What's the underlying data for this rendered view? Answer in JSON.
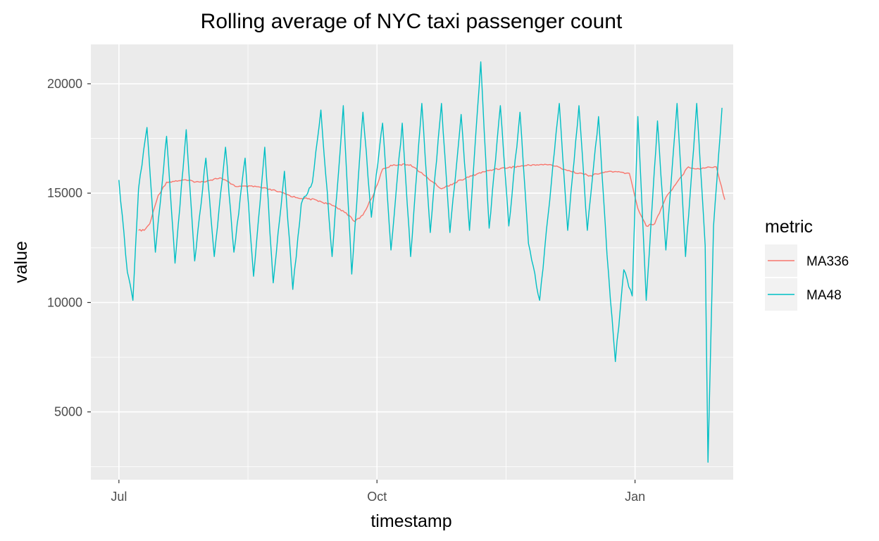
{
  "chart_data": {
    "type": "line",
    "title": "Rolling average of NYC taxi passenger count",
    "xlabel": "timestamp",
    "ylabel": "value",
    "x_ticks": [
      {
        "label": "Jul",
        "value": "2014-07-01"
      },
      {
        "label": "Oct",
        "value": "2014-10-01"
      },
      {
        "label": "Jan",
        "value": "2015-01-01"
      }
    ],
    "y_ticks": [
      5000,
      10000,
      15000,
      20000
    ],
    "xlim": [
      "2014-06-21",
      "2015-02-05"
    ],
    "ylim": [
      1900,
      21800
    ],
    "grid": true,
    "legend": {
      "title": "metric",
      "position": "right",
      "entries": [
        {
          "name": "MA336",
          "color": "#F8766D"
        },
        {
          "name": "MA48",
          "color": "#00BFC4"
        }
      ]
    },
    "series": [
      {
        "name": "MA336",
        "color": "#F8766D",
        "points": [
          [
            "2014-07-08",
            13300
          ],
          [
            "2014-07-10",
            13300
          ],
          [
            "2014-07-12",
            13600
          ],
          [
            "2014-07-15",
            14900
          ],
          [
            "2014-07-18",
            15500
          ],
          [
            "2014-07-24",
            15600
          ],
          [
            "2014-07-30",
            15500
          ],
          [
            "2014-08-06",
            15700
          ],
          [
            "2014-08-12",
            15300
          ],
          [
            "2014-08-19",
            15300
          ],
          [
            "2014-08-26",
            15100
          ],
          [
            "2014-09-02",
            14800
          ],
          [
            "2014-09-09",
            14700
          ],
          [
            "2014-09-16",
            14400
          ],
          [
            "2014-09-20",
            14100
          ],
          [
            "2014-09-23",
            13700
          ],
          [
            "2014-09-26",
            14000
          ],
          [
            "2014-09-30",
            15000
          ],
          [
            "2014-10-03",
            16100
          ],
          [
            "2014-10-07",
            16300
          ],
          [
            "2014-10-13",
            16300
          ],
          [
            "2014-10-18",
            15800
          ],
          [
            "2014-10-24",
            15200
          ],
          [
            "2014-10-31",
            15600
          ],
          [
            "2014-11-06",
            15900
          ],
          [
            "2014-11-12",
            16100
          ],
          [
            "2014-11-19",
            16200
          ],
          [
            "2014-11-26",
            16300
          ],
          [
            "2014-12-02",
            16300
          ],
          [
            "2014-12-09",
            16000
          ],
          [
            "2014-12-16",
            15800
          ],
          [
            "2014-12-23",
            16000
          ],
          [
            "2014-12-30",
            15900
          ],
          [
            "2015-01-02",
            14300
          ],
          [
            "2015-01-05",
            13500
          ],
          [
            "2015-01-08",
            13600
          ],
          [
            "2015-01-12",
            14800
          ],
          [
            "2015-01-16",
            15500
          ],
          [
            "2015-01-20",
            16200
          ],
          [
            "2015-01-24",
            16100
          ],
          [
            "2015-01-27",
            16200
          ],
          [
            "2015-01-30",
            16200
          ],
          [
            "2015-02-02",
            14700
          ]
        ]
      },
      {
        "name": "MA48",
        "color": "#00BFC4",
        "points": [
          [
            "2014-07-01",
            15600
          ],
          [
            "2014-07-04",
            11400
          ],
          [
            "2014-07-06",
            10100
          ],
          [
            "2014-07-08",
            15200
          ],
          [
            "2014-07-11",
            18000
          ],
          [
            "2014-07-14",
            12300
          ],
          [
            "2014-07-18",
            17600
          ],
          [
            "2014-07-21",
            11800
          ],
          [
            "2014-07-25",
            17900
          ],
          [
            "2014-07-28",
            11900
          ],
          [
            "2014-08-01",
            16600
          ],
          [
            "2014-08-04",
            12100
          ],
          [
            "2014-08-08",
            17100
          ],
          [
            "2014-08-11",
            12300
          ],
          [
            "2014-08-15",
            16600
          ],
          [
            "2014-08-18",
            11200
          ],
          [
            "2014-08-22",
            17100
          ],
          [
            "2014-08-25",
            10900
          ],
          [
            "2014-08-29",
            16000
          ],
          [
            "2014-09-01",
            10600
          ],
          [
            "2014-09-04",
            14500
          ],
          [
            "2014-09-08",
            15500
          ],
          [
            "2014-09-11",
            18800
          ],
          [
            "2014-09-15",
            12100
          ],
          [
            "2014-09-19",
            19000
          ],
          [
            "2014-09-22",
            11300
          ],
          [
            "2014-09-26",
            18700
          ],
          [
            "2014-09-29",
            13900
          ],
          [
            "2014-10-03",
            18200
          ],
          [
            "2014-10-06",
            12400
          ],
          [
            "2014-10-10",
            18200
          ],
          [
            "2014-10-13",
            12100
          ],
          [
            "2014-10-17",
            19100
          ],
          [
            "2014-10-20",
            13200
          ],
          [
            "2014-10-24",
            19100
          ],
          [
            "2014-10-27",
            13200
          ],
          [
            "2014-10-31",
            18600
          ],
          [
            "2014-11-03",
            13300
          ],
          [
            "2014-11-07",
            21000
          ],
          [
            "2014-11-10",
            13400
          ],
          [
            "2014-11-14",
            19000
          ],
          [
            "2014-11-17",
            13500
          ],
          [
            "2014-11-21",
            18700
          ],
          [
            "2014-11-24",
            12700
          ],
          [
            "2014-11-28",
            10100
          ],
          [
            "2014-12-01",
            14000
          ],
          [
            "2014-12-05",
            19100
          ],
          [
            "2014-12-08",
            13300
          ],
          [
            "2014-12-12",
            19000
          ],
          [
            "2014-12-15",
            13300
          ],
          [
            "2014-12-19",
            18500
          ],
          [
            "2014-12-22",
            12200
          ],
          [
            "2014-12-25",
            7300
          ],
          [
            "2014-12-28",
            11500
          ],
          [
            "2014-12-31",
            10300
          ],
          [
            "2015-01-02",
            18500
          ],
          [
            "2015-01-05",
            10100
          ],
          [
            "2015-01-09",
            18300
          ],
          [
            "2015-01-12",
            12400
          ],
          [
            "2015-01-16",
            19100
          ],
          [
            "2015-01-19",
            12100
          ],
          [
            "2015-01-23",
            19100
          ],
          [
            "2015-01-26",
            12600
          ],
          [
            "2015-01-27",
            2700
          ],
          [
            "2015-01-29",
            13500
          ],
          [
            "2015-02-01",
            18900
          ]
        ]
      }
    ]
  }
}
